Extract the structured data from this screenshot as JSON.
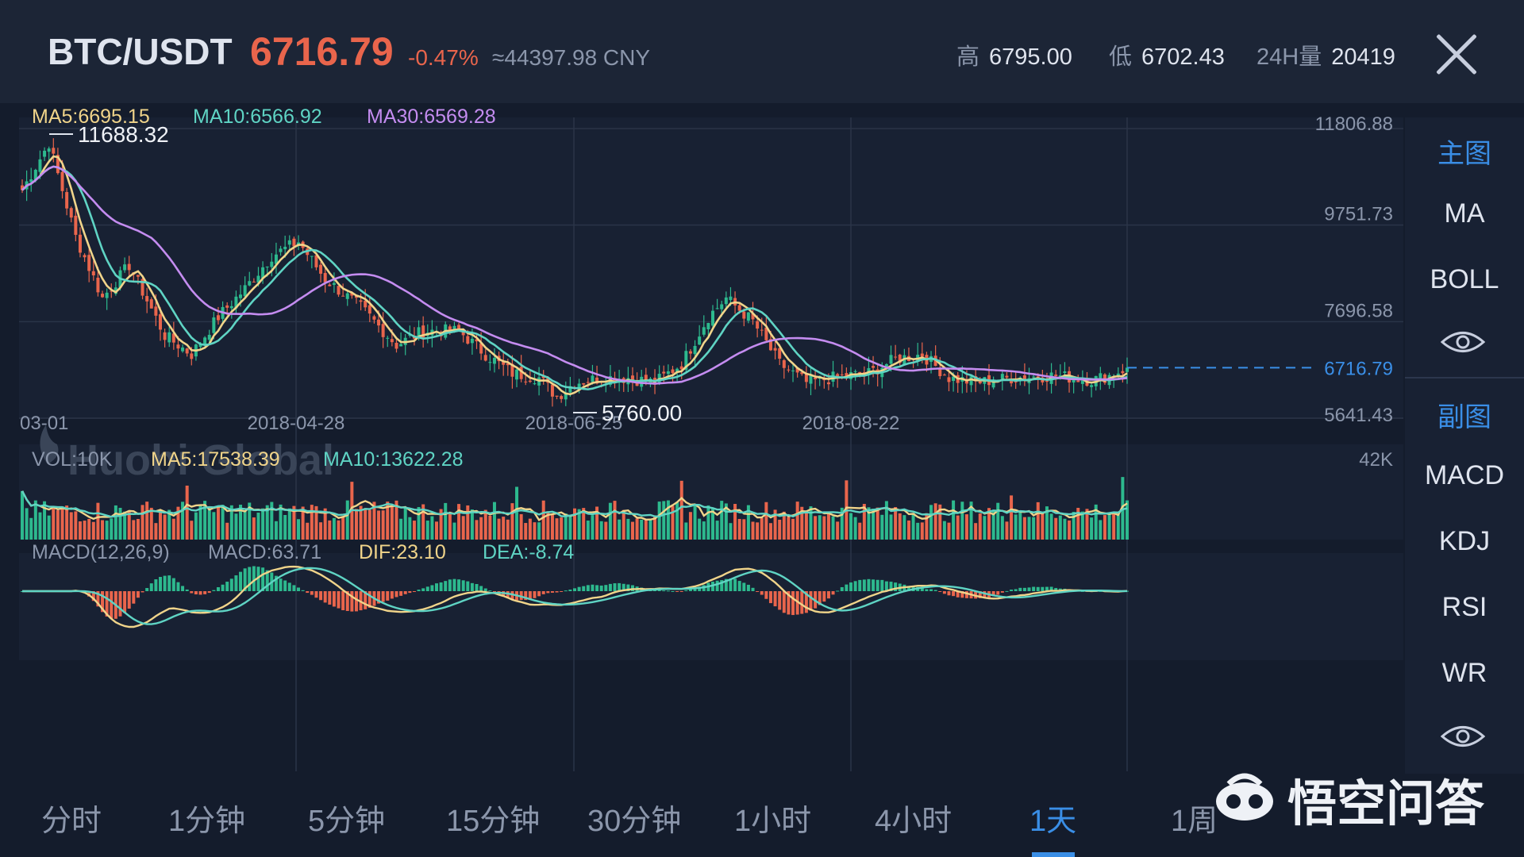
{
  "header": {
    "pair": "BTC/USDT",
    "price": "6716.79",
    "change": "-0.47%",
    "cny": "≈44397.98 CNY",
    "high_label": "高",
    "high": "6795.00",
    "low_label": "低",
    "low": "6702.43",
    "vol_label": "24H量",
    "vol": "20419"
  },
  "colors": {
    "up": "#2db98e",
    "down": "#e9654c",
    "ma5": "#f0d48a",
    "ma10": "#5fd4c4",
    "ma30": "#c48cf0",
    "accent": "#3a8ee6"
  },
  "sidebar": {
    "main_header": "主图",
    "main_items": [
      "MA",
      "BOLL"
    ],
    "sub_header": "副图",
    "sub_items": [
      "MACD",
      "KDJ",
      "RSI",
      "WR"
    ]
  },
  "tabs": [
    "分时",
    "1分钟",
    "5分钟",
    "15分钟",
    "30分钟",
    "1小时",
    "4小时",
    "1天",
    "1周"
  ],
  "active_tab": "1天",
  "watermark": {
    "brand": "Huobi Global",
    "corner": "悟空问答"
  },
  "chart_data": {
    "type": "candlestick",
    "main": {
      "ma_labels": [
        "MA5:6695.15",
        "MA10:6566.92",
        "MA30:6569.28"
      ],
      "y_ticks": [
        11806.88,
        9751.73,
        7696.58,
        5641.43
      ],
      "y_tick_labels": [
        "11806.88",
        "9751.73",
        "7696.58",
        "5641.43"
      ],
      "ylim": [
        5641.43,
        11806.88
      ],
      "x_ticks": [
        "03-01",
        "2018-04-28",
        "2018-06-25",
        "2018-08-22"
      ],
      "max_label": "11688.32",
      "max_value": 11688.32,
      "min_label": "5760.00",
      "min_value": 5760.0,
      "last_price_label": "6716.79",
      "last_price": 6716.79,
      "close_keypoints": [
        [
          0,
          10500
        ],
        [
          6,
          11500
        ],
        [
          12,
          9500
        ],
        [
          18,
          8200
        ],
        [
          24,
          8900
        ],
        [
          32,
          7400
        ],
        [
          38,
          7000
        ],
        [
          44,
          7800
        ],
        [
          50,
          8400
        ],
        [
          56,
          9100
        ],
        [
          62,
          9400
        ],
        [
          68,
          8600
        ],
        [
          76,
          8000
        ],
        [
          84,
          7200
        ],
        [
          90,
          7500
        ],
        [
          98,
          7500
        ],
        [
          104,
          7000
        ],
        [
          110,
          6600
        ],
        [
          116,
          6500
        ],
        [
          120,
          6100
        ],
        [
          124,
          6400
        ],
        [
          130,
          6500
        ],
        [
          136,
          6500
        ],
        [
          142,
          6400
        ],
        [
          148,
          6800
        ],
        [
          154,
          7800
        ],
        [
          158,
          8200
        ],
        [
          164,
          7700
        ],
        [
          170,
          6800
        ],
        [
          176,
          6400
        ],
        [
          182,
          6500
        ],
        [
          190,
          6600
        ],
        [
          196,
          6900
        ],
        [
          202,
          7000
        ],
        [
          208,
          6500
        ],
        [
          214,
          6400
        ],
        [
          222,
          6500
        ],
        [
          232,
          6550
        ],
        [
          240,
          6450
        ],
        [
          244,
          6550
        ],
        [
          248,
          6716.79
        ]
      ]
    },
    "volume": {
      "labels": [
        "VOL:10K",
        "MA5:17538.39",
        "MA10:13622.28"
      ],
      "y_max_label": "42K",
      "y_max": 42
    },
    "macd": {
      "labels": [
        "MACD(12,26,9)",
        "MACD:63.71",
        "DIF:23.10",
        "DEA:-8.74"
      ]
    }
  }
}
